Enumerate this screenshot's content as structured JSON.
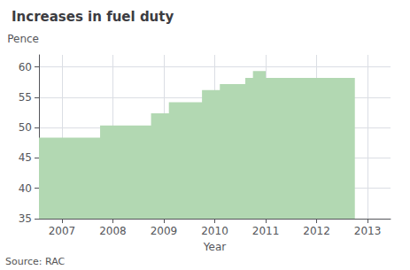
{
  "chart_data": {
    "type": "step",
    "title": "Increases in fuel duty",
    "xlabel": "Year",
    "ylabel": "Pence",
    "source": "Source: RAC",
    "x": [
      2006.55,
      2007.25,
      2007.75,
      2008.55,
      2008.75,
      2009.1,
      2009.4,
      2009.75,
      2010.1,
      2010.4,
      2010.6,
      2010.75,
      2011.0,
      2012.75
    ],
    "values": [
      48.35,
      48.35,
      50.35,
      50.35,
      52.35,
      54.19,
      54.19,
      56.19,
      57.19,
      57.19,
      58.19,
      59.35,
      58.19,
      58.19
    ],
    "color": "#b2d8b2",
    "xlim": [
      2006.55,
      2013.45
    ],
    "xticks": [
      2007,
      2008,
      2009,
      2010,
      2011,
      2012,
      2013
    ],
    "ylim": [
      35,
      62
    ],
    "yticks": [
      35,
      40,
      45,
      50,
      55,
      60
    ],
    "grid": true
  }
}
